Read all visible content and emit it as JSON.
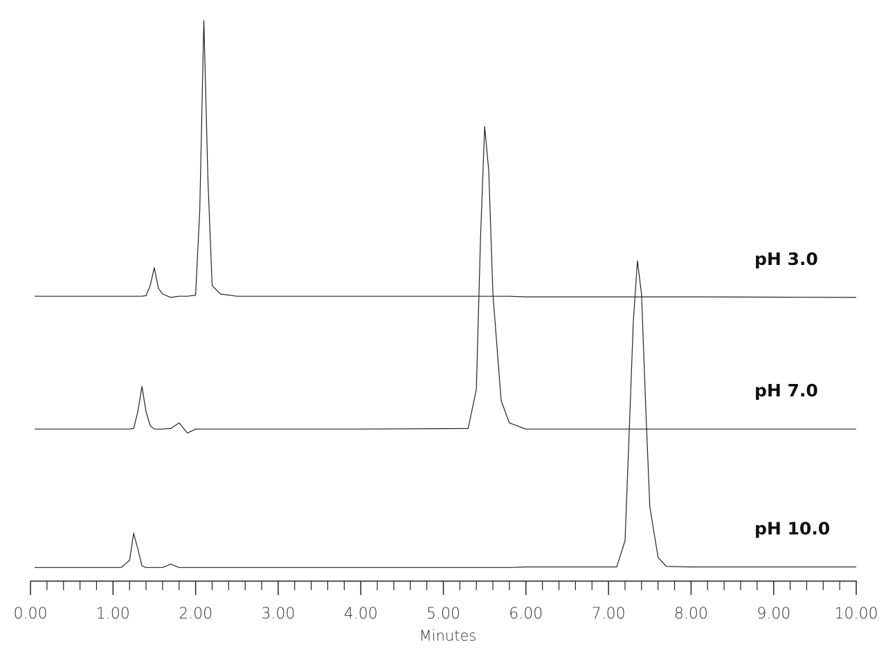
{
  "chart_data": {
    "type": "line",
    "x_label": "Minutes",
    "x": [
      0.05,
      0.7,
      1.1,
      1.2,
      1.25,
      1.3,
      1.35,
      1.4,
      1.45,
      1.5,
      1.55,
      1.6,
      1.7,
      1.8,
      1.9,
      2.0,
      2.05,
      2.1,
      2.15,
      2.2,
      2.3,
      2.5,
      4.0,
      5.3,
      5.4,
      5.45,
      5.5,
      5.55,
      5.6,
      5.7,
      5.8,
      6.0,
      7.1,
      7.2,
      7.25,
      7.3,
      7.35,
      7.4,
      7.45,
      7.5,
      7.6,
      7.7,
      8.0,
      10.0
    ],
    "series": [
      {
        "name": "pH 3.0",
        "color": "#222222",
        "values": [
          49.6,
          49.6,
          49.6,
          49.6,
          49.6,
          49.6,
          49.6,
          49.7,
          51.5,
          54.7,
          51.0,
          50.0,
          49.4,
          49.6,
          49.6,
          49.8,
          65,
          98.8,
          70,
          51.5,
          50.0,
          49.6,
          49.6,
          49.6,
          49.6,
          49.6,
          49.6,
          49.6,
          49.6,
          49.6,
          49.6,
          49.5,
          49.5,
          49.5,
          49.5,
          49.5,
          49.5,
          49.5,
          49.5,
          49.5,
          49.5,
          49.5,
          49.5,
          49.4
        ]
      },
      {
        "name": "pH 7.0",
        "color": "#222222",
        "values": [
          25.9,
          25.9,
          25.9,
          25.9,
          26.0,
          29,
          33.5,
          29,
          26.5,
          25.9,
          25.9,
          25.9,
          26.0,
          27.0,
          25.2,
          25.9,
          25.9,
          25.9,
          25.9,
          25.9,
          25.9,
          25.9,
          25.9,
          26.0,
          33,
          60,
          79.9,
          72,
          50,
          31,
          27,
          25.9,
          25.9,
          25.9,
          25.9,
          25.9,
          25.9,
          25.9,
          25.9,
          25.9,
          25.9,
          25.9,
          25.9,
          25.9
        ]
      },
      {
        "name": "pH 10.0",
        "color": "#222222",
        "values": [
          1.2,
          1.2,
          1.2,
          2.5,
          7.3,
          4.5,
          1.5,
          1.2,
          1.2,
          1.2,
          1.2,
          1.2,
          1.8,
          1.2,
          1.2,
          1.2,
          1.2,
          1.2,
          1.2,
          1.2,
          1.2,
          1.2,
          1.2,
          1.2,
          1.2,
          1.2,
          1.2,
          1.2,
          1.2,
          1.2,
          1.2,
          1.3,
          1.3,
          6,
          25,
          45,
          55.9,
          50,
          30,
          12,
          3,
          1.4,
          1.3,
          1.3
        ]
      }
    ],
    "xlim": [
      0,
      10
    ],
    "ylim": [
      0,
      100
    ],
    "xticks": [
      {
        "value": 0,
        "label": "0.00"
      },
      {
        "value": 1,
        "label": "1.00"
      },
      {
        "value": 2,
        "label": "2.00"
      },
      {
        "value": 3,
        "label": "3.00"
      },
      {
        "value": 4,
        "label": "4.00"
      },
      {
        "value": 5,
        "label": "5.00"
      },
      {
        "value": 6,
        "label": "6.00"
      },
      {
        "value": 7,
        "label": "7.00"
      },
      {
        "value": 8,
        "label": "8.00"
      },
      {
        "value": 9,
        "label": "9.00"
      },
      {
        "value": 10,
        "label": "10.00"
      }
    ],
    "xminorticks": [
      0.2,
      0.4,
      0.6,
      0.8,
      1.2,
      1.4,
      1.6,
      1.8,
      2.2,
      2.4,
      2.6,
      2.8,
      3.2,
      3.4,
      3.6,
      3.8,
      4.2,
      4.4,
      4.6,
      4.8,
      5.2,
      5.4,
      5.6,
      5.8,
      6.2,
      6.4,
      6.6,
      6.8,
      7.2,
      7.4,
      7.6,
      7.8,
      8.2,
      8.4,
      8.6,
      8.8,
      9.2,
      9.4,
      9.6,
      9.8
    ]
  }
}
